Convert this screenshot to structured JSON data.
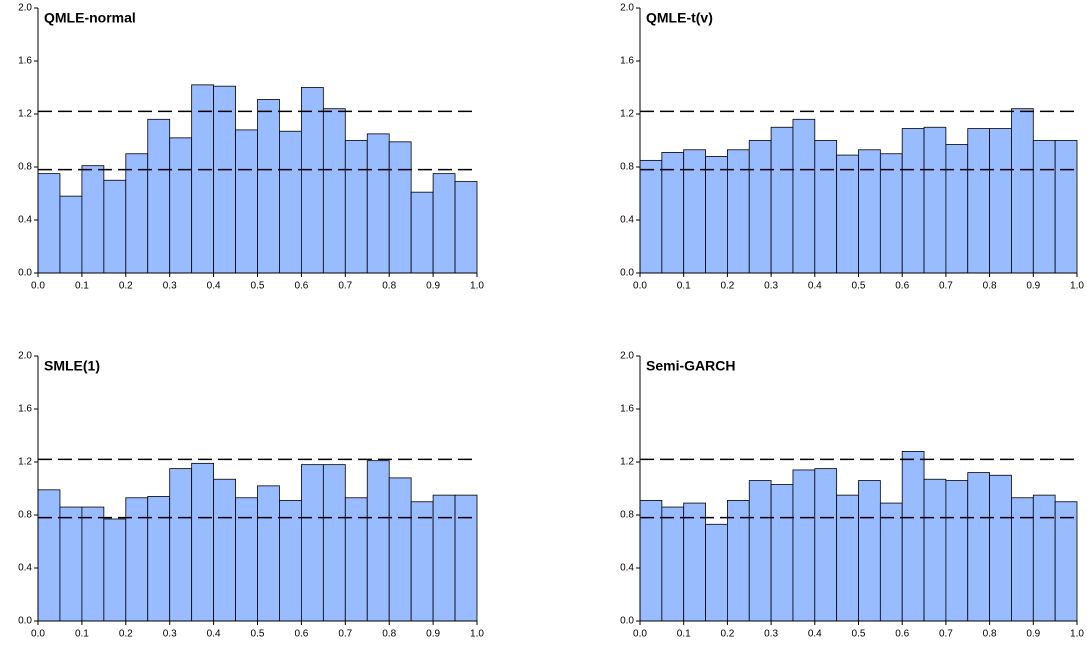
{
  "chart_data": [
    {
      "type": "histogram",
      "title": "QMLE-normal",
      "color": "#99bbff",
      "edge_color": "#000000",
      "bins": [
        0,
        0.05,
        0.1,
        0.15,
        0.2,
        0.25,
        0.3,
        0.35,
        0.4,
        0.45,
        0.5,
        0.55,
        0.6,
        0.65,
        0.7,
        0.75,
        0.8,
        0.85,
        0.9,
        0.95,
        1.0
      ],
      "values": [
        0.75,
        0.58,
        0.81,
        0.7,
        0.9,
        1.16,
        1.02,
        1.42,
        1.41,
        1.08,
        1.31,
        1.07,
        1.4,
        1.24,
        1.0,
        1.05,
        0.99,
        0.61,
        0.75,
        0.69
      ],
      "reference_lines": [
        0.78,
        1.22
      ],
      "xlim": [
        0,
        1
      ],
      "ylim": [
        0,
        2
      ],
      "xticks": [
        {
          "value": 0,
          "label": "0.0"
        },
        {
          "value": 0.1,
          "label": "0.1"
        },
        {
          "value": 0.2,
          "label": "0.2"
        },
        {
          "value": 0.3,
          "label": "0.3"
        },
        {
          "value": 0.4,
          "label": "0.4"
        },
        {
          "value": 0.5,
          "label": "0.5"
        },
        {
          "value": 0.6,
          "label": "0.6"
        },
        {
          "value": 0.7,
          "label": "0.7"
        },
        {
          "value": 0.8,
          "label": "0.8"
        },
        {
          "value": 0.9,
          "label": "0.9"
        },
        {
          "value": 1,
          "label": "1.0"
        }
      ],
      "yticks": [
        {
          "value": 0,
          "label": "0.0"
        },
        {
          "value": 0.4,
          "label": "0.4"
        },
        {
          "value": 0.8,
          "label": "0.8"
        },
        {
          "value": 1.2,
          "label": "1.2"
        },
        {
          "value": 1.6,
          "label": "1.6"
        },
        {
          "value": 2,
          "label": "2.0"
        }
      ]
    },
    {
      "type": "histogram",
      "title": "QMLE-t(v)",
      "color": "#99bbff",
      "edge_color": "#000000",
      "bins": [
        0,
        0.05,
        0.1,
        0.15,
        0.2,
        0.25,
        0.3,
        0.35,
        0.4,
        0.45,
        0.5,
        0.55,
        0.6,
        0.65,
        0.7,
        0.75,
        0.8,
        0.85,
        0.9,
        0.95,
        1.0
      ],
      "values": [
        0.85,
        0.91,
        0.93,
        0.88,
        0.93,
        1.0,
        1.1,
        1.16,
        1.0,
        0.89,
        0.93,
        0.9,
        1.09,
        1.1,
        0.97,
        1.09,
        1.09,
        1.24,
        1.0,
        1.0
      ],
      "reference_lines": [
        0.78,
        1.22
      ],
      "xlim": [
        0,
        1
      ],
      "ylim": [
        0,
        2
      ],
      "xticks": [
        {
          "value": 0,
          "label": "0.0"
        },
        {
          "value": 0.1,
          "label": "0.1"
        },
        {
          "value": 0.2,
          "label": "0.2"
        },
        {
          "value": 0.3,
          "label": "0.3"
        },
        {
          "value": 0.4,
          "label": "0.4"
        },
        {
          "value": 0.5,
          "label": "0.5"
        },
        {
          "value": 0.6,
          "label": "0.6"
        },
        {
          "value": 0.7,
          "label": "0.7"
        },
        {
          "value": 0.8,
          "label": "0.8"
        },
        {
          "value": 0.9,
          "label": "0.9"
        },
        {
          "value": 1,
          "label": "1.0"
        }
      ],
      "yticks": [
        {
          "value": 0,
          "label": "0.0"
        },
        {
          "value": 0.4,
          "label": "0.4"
        },
        {
          "value": 0.8,
          "label": "0.8"
        },
        {
          "value": 1.2,
          "label": "1.2"
        },
        {
          "value": 1.6,
          "label": "1.6"
        },
        {
          "value": 2,
          "label": "2.0"
        }
      ]
    },
    {
      "type": "histogram",
      "title": "SMLE(1)",
      "color": "#99bbff",
      "edge_color": "#000000",
      "bins": [
        0,
        0.05,
        0.1,
        0.15,
        0.2,
        0.25,
        0.3,
        0.35,
        0.4,
        0.45,
        0.5,
        0.55,
        0.6,
        0.65,
        0.7,
        0.75,
        0.8,
        0.85,
        0.9,
        0.95,
        1.0
      ],
      "values": [
        0.99,
        0.86,
        0.86,
        0.77,
        0.93,
        0.94,
        1.15,
        1.19,
        1.07,
        0.93,
        1.02,
        0.91,
        1.18,
        1.18,
        0.93,
        1.21,
        1.08,
        0.9,
        0.95,
        0.95
      ],
      "reference_lines": [
        0.78,
        1.22
      ],
      "xlim": [
        0,
        1
      ],
      "ylim": [
        0,
        2
      ],
      "xticks": [
        {
          "value": 0,
          "label": "0.0"
        },
        {
          "value": 0.1,
          "label": "0.1"
        },
        {
          "value": 0.2,
          "label": "0.2"
        },
        {
          "value": 0.3,
          "label": "0.3"
        },
        {
          "value": 0.4,
          "label": "0.4"
        },
        {
          "value": 0.5,
          "label": "0.5"
        },
        {
          "value": 0.6,
          "label": "0.6"
        },
        {
          "value": 0.7,
          "label": "0.7"
        },
        {
          "value": 0.8,
          "label": "0.8"
        },
        {
          "value": 0.9,
          "label": "0.9"
        },
        {
          "value": 1,
          "label": "1.0"
        }
      ],
      "yticks": [
        {
          "value": 0,
          "label": "0.0"
        },
        {
          "value": 0.4,
          "label": "0.4"
        },
        {
          "value": 0.8,
          "label": "0.8"
        },
        {
          "value": 1.2,
          "label": "1.2"
        },
        {
          "value": 1.6,
          "label": "1.6"
        },
        {
          "value": 2,
          "label": "2.0"
        }
      ]
    },
    {
      "type": "histogram",
      "title": "Semi-GARCH",
      "color": "#99bbff",
      "edge_color": "#000000",
      "bins": [
        0,
        0.05,
        0.1,
        0.15,
        0.2,
        0.25,
        0.3,
        0.35,
        0.4,
        0.45,
        0.5,
        0.55,
        0.6,
        0.65,
        0.7,
        0.75,
        0.8,
        0.85,
        0.9,
        0.95,
        1.0
      ],
      "values": [
        0.91,
        0.86,
        0.89,
        0.73,
        0.91,
        1.06,
        1.03,
        1.14,
        1.15,
        0.95,
        1.06,
        0.89,
        1.28,
        1.07,
        1.06,
        1.12,
        1.1,
        0.93,
        0.95,
        0.9
      ],
      "reference_lines": [
        0.78,
        1.22
      ],
      "xlim": [
        0,
        1
      ],
      "ylim": [
        0,
        2
      ],
      "xticks": [
        {
          "value": 0,
          "label": "0.0"
        },
        {
          "value": 0.1,
          "label": "0.1"
        },
        {
          "value": 0.2,
          "label": "0.2"
        },
        {
          "value": 0.3,
          "label": "0.3"
        },
        {
          "value": 0.4,
          "label": "0.4"
        },
        {
          "value": 0.5,
          "label": "0.5"
        },
        {
          "value": 0.6,
          "label": "0.6"
        },
        {
          "value": 0.7,
          "label": "0.7"
        },
        {
          "value": 0.8,
          "label": "0.8"
        },
        {
          "value": 0.9,
          "label": "0.9"
        },
        {
          "value": 1,
          "label": "1.0"
        }
      ],
      "yticks": [
        {
          "value": 0,
          "label": "0.0"
        },
        {
          "value": 0.4,
          "label": "0.4"
        },
        {
          "value": 0.8,
          "label": "0.8"
        },
        {
          "value": 1.2,
          "label": "1.2"
        },
        {
          "value": 1.6,
          "label": "1.6"
        },
        {
          "value": 2,
          "label": "2.0"
        }
      ]
    }
  ]
}
